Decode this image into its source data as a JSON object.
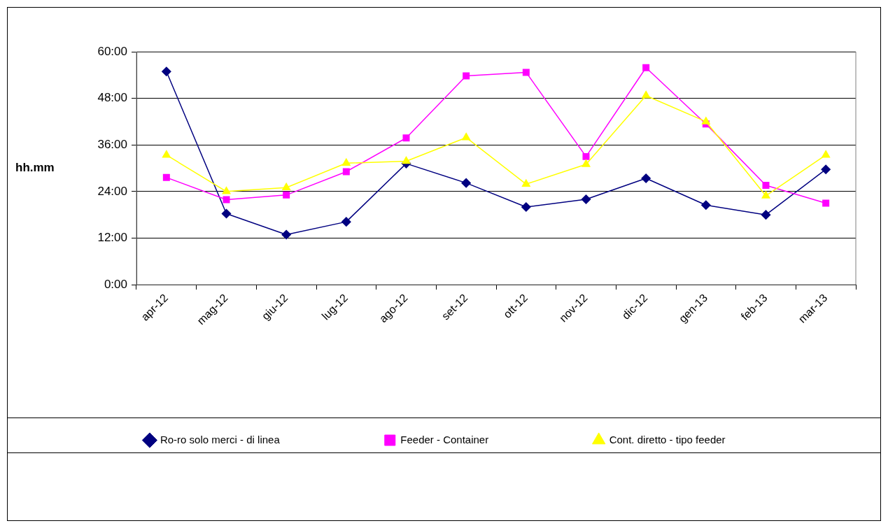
{
  "chart_data": {
    "type": "line",
    "ylabel": "hh.mm",
    "categories": [
      "apr-12",
      "mag-12",
      "giu-12",
      "lug-12",
      "ago-12",
      "set-12",
      "ott-12",
      "nov-12",
      "dic-12",
      "gen-13",
      "feb-13",
      "mar-13"
    ],
    "series": [
      {
        "name": "Ro-ro solo merci - di linea",
        "color": "#000080",
        "marker": "diamond",
        "values": [
          54.9,
          18.3,
          12.9,
          16.2,
          31.2,
          26.2,
          20.0,
          22.0,
          27.4,
          20.5,
          18.0,
          29.7
        ]
      },
      {
        "name": "Feeder - Container",
        "color": "#ff00ff",
        "marker": "square",
        "values": [
          27.6,
          21.9,
          23.1,
          29.1,
          37.8,
          53.8,
          54.7,
          33.0,
          55.9,
          41.4,
          25.6,
          21.0
        ]
      },
      {
        "name": "Cont. diretto - tipo feeder",
        "color": "#ffff00",
        "marker": "triangle",
        "values": [
          33.4,
          24.0,
          25.0,
          31.3,
          31.8,
          37.9,
          25.9,
          31.0,
          48.7,
          42.0,
          22.9,
          33.4
        ]
      }
    ],
    "ylim": [
      0,
      60
    ],
    "yticks": [
      {
        "value": 0,
        "label": "0:00"
      },
      {
        "value": 12,
        "label": "12:00"
      },
      {
        "value": 24,
        "label": "24:00"
      },
      {
        "value": 36,
        "label": "36:00"
      },
      {
        "value": 48,
        "label": "48:00"
      },
      {
        "value": 60,
        "label": "60:00"
      }
    ],
    "grid": "y",
    "legend": "bottom",
    "line_style": "solid"
  }
}
